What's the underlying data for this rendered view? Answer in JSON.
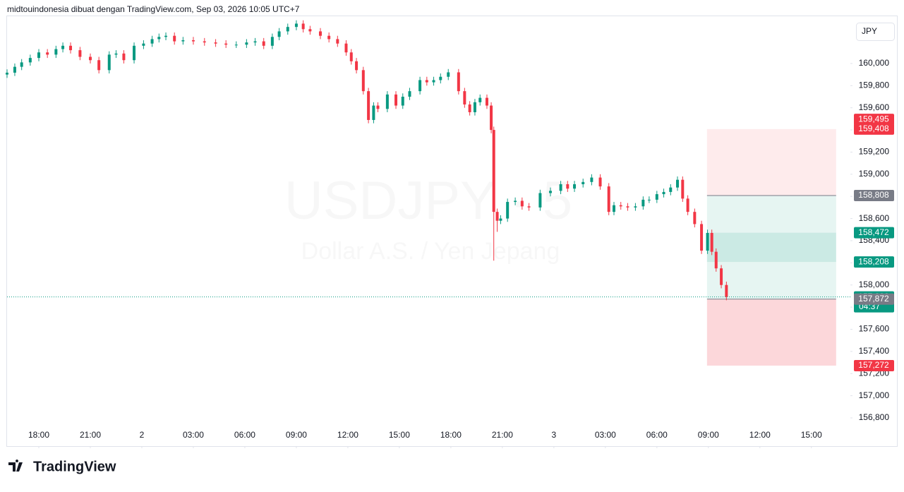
{
  "chart_data": {
    "type": "candlestick",
    "header": "midtouindonesia dibuat dengan TradingView.com, Sep 03, 2026 10:05 UTC+7",
    "watermark": {
      "symbol": "USDJPY · 5",
      "description": "Dollar A.S. / Yen Jepang"
    },
    "currency_button": "JPY",
    "brand": "TradingView",
    "up_color": "#089981",
    "down_color": "#f23645",
    "xlim": [
      16.15,
      65.27
    ],
    "ylim": [
      156.545,
      160.433
    ],
    "xticks": [
      {
        "value": 18,
        "label": "18:00"
      },
      {
        "value": 21,
        "label": "21:00"
      },
      {
        "value": 24,
        "label": "2"
      },
      {
        "value": 27,
        "label": "03:00"
      },
      {
        "value": 30,
        "label": "06:00"
      },
      {
        "value": 33,
        "label": "09:00"
      },
      {
        "value": 36,
        "label": "12:00"
      },
      {
        "value": 39,
        "label": "15:00"
      },
      {
        "value": 42,
        "label": "18:00"
      },
      {
        "value": 45,
        "label": "21:00"
      },
      {
        "value": 48,
        "label": "3"
      },
      {
        "value": 51,
        "label": "03:00"
      },
      {
        "value": 54,
        "label": "06:00"
      },
      {
        "value": 57,
        "label": "09:00"
      },
      {
        "value": 60,
        "label": "12:00"
      },
      {
        "value": 63,
        "label": "15:00"
      }
    ],
    "yticks": [
      {
        "value": 160.0,
        "label": "160,000"
      },
      {
        "value": 159.8,
        "label": "159,800"
      },
      {
        "value": 159.6,
        "label": "159,600"
      },
      {
        "value": 159.4,
        "label": "159,400"
      },
      {
        "value": 159.2,
        "label": "159,200"
      },
      {
        "value": 159.0,
        "label": "159,000"
      },
      {
        "value": 158.8,
        "label": "158,800"
      },
      {
        "value": 158.6,
        "label": "158,600"
      },
      {
        "value": 158.4,
        "label": "158,400"
      },
      {
        "value": 158.2,
        "label": "158,200"
      },
      {
        "value": 158.0,
        "label": "158,000"
      },
      {
        "value": 157.8,
        "label": "157,800"
      },
      {
        "value": 157.6,
        "label": "157,600"
      },
      {
        "value": 157.4,
        "label": "157,400"
      },
      {
        "value": 157.2,
        "label": "157,200"
      },
      {
        "value": 157.0,
        "label": "157,000"
      },
      {
        "value": 156.8,
        "label": "156,800"
      }
    ],
    "x": [
      16.15,
      16.6,
      17,
      17.5,
      18,
      18.5,
      19,
      19.4,
      19.85,
      20.4,
      21,
      21.5,
      22.1,
      22.5,
      22.95,
      23.55,
      24.1,
      24.6,
      25,
      25.4,
      25.9,
      26.4,
      27,
      27.65,
      28.3,
      28.9,
      29.5,
      30.1,
      30.6,
      31.1,
      31.6,
      32,
      32.5,
      33,
      33.4,
      33.8,
      34.4,
      34.9,
      35.4,
      35.9,
      36.2,
      36.5,
      36.9,
      37.2,
      37.5,
      37.75,
      38.3,
      38.8,
      39.2,
      39.6,
      40.2,
      40.6,
      41,
      41.4,
      41.85,
      42.45,
      42.8,
      43.1,
      43.4,
      43.7,
      44.1,
      44.35,
      44.5,
      44.7,
      44.9,
      45.3,
      45.75,
      46.15,
      46.55,
      47.2,
      47.8,
      48.4,
      48.8,
      49.2,
      49.7,
      50.2,
      50.7,
      51.2,
      51.5,
      51.9,
      52.3,
      52.75,
      53.2,
      53.55,
      54,
      54.4,
      54.8,
      55.2,
      55.5,
      55.8,
      56.2,
      56.6,
      56.95,
      57.2,
      57.45,
      57.75,
      58.05
    ],
    "open": [
      159.9,
      159.917,
      159.97,
      160.01,
      160.05,
      160.1,
      160.08,
      160.13,
      160.16,
      160.12,
      160.06,
      160.03,
      159.94,
      160.08,
      160.09,
      160.03,
      160.16,
      160.18,
      160.22,
      160.24,
      160.25,
      160.2,
      160.21,
      160.2,
      160.19,
      160.18,
      160.17,
      160.17,
      160.19,
      160.2,
      160.16,
      160.24,
      160.29,
      160.33,
      160.36,
      160.31,
      160.29,
      160.25,
      160.22,
      160.18,
      160.1,
      160.02,
      159.94,
      159.75,
      159.49,
      159.62,
      159.59,
      159.72,
      159.62,
      159.7,
      159.75,
      159.85,
      159.83,
      159.85,
      159.88,
      159.92,
      159.75,
      159.63,
      159.56,
      159.65,
      159.69,
      159.62,
      159.4,
      158.66,
      158.58,
      158.6,
      158.75,
      158.76,
      158.71,
      158.7,
      158.83,
      158.85,
      158.91,
      158.87,
      158.91,
      158.93,
      158.97,
      158.89,
      158.66,
      158.72,
      158.71,
      158.7,
      158.71,
      158.77,
      158.77,
      158.82,
      158.84,
      158.88,
      158.95,
      158.78,
      158.66,
      158.55,
      158.31,
      158.47,
      158.3,
      158.15,
      158.0
    ],
    "high": [
      159.947,
      160.0,
      160.04,
      160.08,
      160.13,
      160.13,
      160.16,
      160.19,
      160.19,
      160.15,
      160.09,
      160.06,
      160.11,
      160.12,
      160.12,
      160.19,
      160.21,
      160.25,
      160.27,
      160.28,
      160.28,
      160.24,
      160.24,
      160.23,
      160.22,
      160.21,
      160.2,
      160.22,
      160.23,
      160.23,
      160.27,
      160.32,
      160.36,
      160.39,
      160.39,
      160.34,
      160.32,
      160.28,
      160.25,
      160.21,
      160.13,
      160.05,
      159.97,
      159.78,
      159.65,
      159.65,
      159.75,
      159.75,
      159.73,
      159.78,
      159.88,
      159.88,
      159.88,
      159.91,
      159.95,
      159.95,
      159.78,
      159.66,
      159.68,
      159.72,
      159.72,
      159.65,
      159.43,
      158.69,
      158.63,
      158.78,
      158.79,
      158.79,
      158.74,
      158.86,
      158.88,
      158.94,
      158.94,
      158.94,
      158.96,
      159.0,
      159.0,
      158.92,
      158.75,
      158.75,
      158.74,
      158.74,
      158.8,
      158.8,
      158.85,
      158.87,
      158.91,
      158.98,
      158.98,
      158.81,
      158.69,
      158.58,
      158.5,
      158.5,
      158.33,
      158.18,
      158.03
    ],
    "low": [
      159.87,
      159.887,
      159.94,
      159.98,
      160.02,
      160.05,
      160.05,
      160.1,
      160.09,
      160.03,
      160.0,
      159.91,
      159.91,
      160.05,
      160.0,
      160.0,
      160.13,
      160.15,
      160.19,
      160.21,
      160.17,
      160.17,
      160.17,
      160.16,
      160.15,
      160.14,
      160.14,
      160.14,
      160.16,
      160.13,
      160.13,
      160.21,
      160.26,
      160.3,
      160.28,
      160.26,
      160.22,
      160.19,
      160.15,
      160.07,
      159.99,
      159.91,
      159.72,
      159.46,
      159.46,
      159.56,
      159.56,
      159.59,
      159.59,
      159.67,
      159.72,
      159.8,
      159.8,
      159.82,
      159.85,
      159.72,
      159.6,
      159.53,
      159.53,
      159.62,
      159.59,
      159.37,
      158.22,
      158.48,
      158.55,
      158.57,
      158.72,
      158.68,
      158.67,
      158.67,
      158.8,
      158.82,
      158.84,
      158.84,
      158.88,
      158.9,
      158.86,
      158.63,
      158.63,
      158.68,
      158.67,
      158.67,
      158.68,
      158.74,
      158.74,
      158.79,
      158.81,
      158.85,
      158.75,
      158.63,
      158.52,
      158.28,
      158.28,
      158.27,
      158.12,
      157.97,
      157.862
    ],
    "close": [
      159.917,
      159.97,
      160.01,
      160.05,
      160.1,
      160.08,
      160.13,
      160.16,
      160.12,
      160.06,
      160.03,
      159.94,
      160.08,
      160.09,
      160.03,
      160.16,
      160.18,
      160.22,
      160.24,
      160.25,
      160.2,
      160.21,
      160.2,
      160.19,
      160.18,
      160.17,
      160.17,
      160.19,
      160.2,
      160.16,
      160.24,
      160.29,
      160.33,
      160.36,
      160.31,
      160.29,
      160.25,
      160.22,
      160.18,
      160.1,
      160.02,
      159.94,
      159.75,
      159.49,
      159.62,
      159.59,
      159.72,
      159.62,
      159.7,
      159.75,
      159.85,
      159.83,
      159.85,
      159.88,
      159.92,
      159.75,
      159.63,
      159.56,
      159.65,
      159.69,
      159.62,
      159.4,
      158.66,
      158.58,
      158.6,
      158.75,
      158.76,
      158.71,
      158.7,
      158.83,
      158.85,
      158.91,
      158.87,
      158.91,
      158.93,
      158.97,
      158.89,
      158.66,
      158.72,
      158.71,
      158.7,
      158.71,
      158.77,
      158.77,
      158.82,
      158.84,
      158.88,
      158.95,
      158.78,
      158.66,
      158.55,
      158.31,
      158.47,
      158.3,
      158.15,
      158.0,
      157.892
    ],
    "last_price": 157.892,
    "zones": [
      {
        "from": 159.408,
        "to": 158.808,
        "start": 56.92,
        "end": 64.44,
        "color": "rgba(242,54,69,0.10)"
      },
      {
        "from": 158.808,
        "to": 157.872,
        "start": 56.92,
        "end": 64.44,
        "color": "rgba(8,153,129,0.10)"
      },
      {
        "from": 158.472,
        "to": 158.208,
        "start": 56.92,
        "end": 64.44,
        "color": "rgba(8,153,129,0.12)"
      },
      {
        "from": 157.872,
        "to": 157.272,
        "start": 56.92,
        "end": 64.44,
        "color": "rgba(242,54,69,0.20)"
      }
    ],
    "price_labels": [
      {
        "value": 159.495,
        "label": "159,495",
        "color": "#f23645"
      },
      {
        "value": 159.408,
        "label": "159,408",
        "color": "#f23645"
      },
      {
        "value": 158.808,
        "label": "158,808",
        "color": "#787b86"
      },
      {
        "value": 158.472,
        "label": "158,472",
        "color": "#089981"
      },
      {
        "value": 158.208,
        "label": "158,208",
        "color": "#089981"
      },
      {
        "value": 157.892,
        "label": "157,892",
        "color": "#089981",
        "countdown": "04:37"
      },
      {
        "value": 157.872,
        "label": "157,872",
        "color": "#787b86"
      },
      {
        "value": 157.272,
        "label": "157,272",
        "color": "#f23645"
      }
    ]
  }
}
